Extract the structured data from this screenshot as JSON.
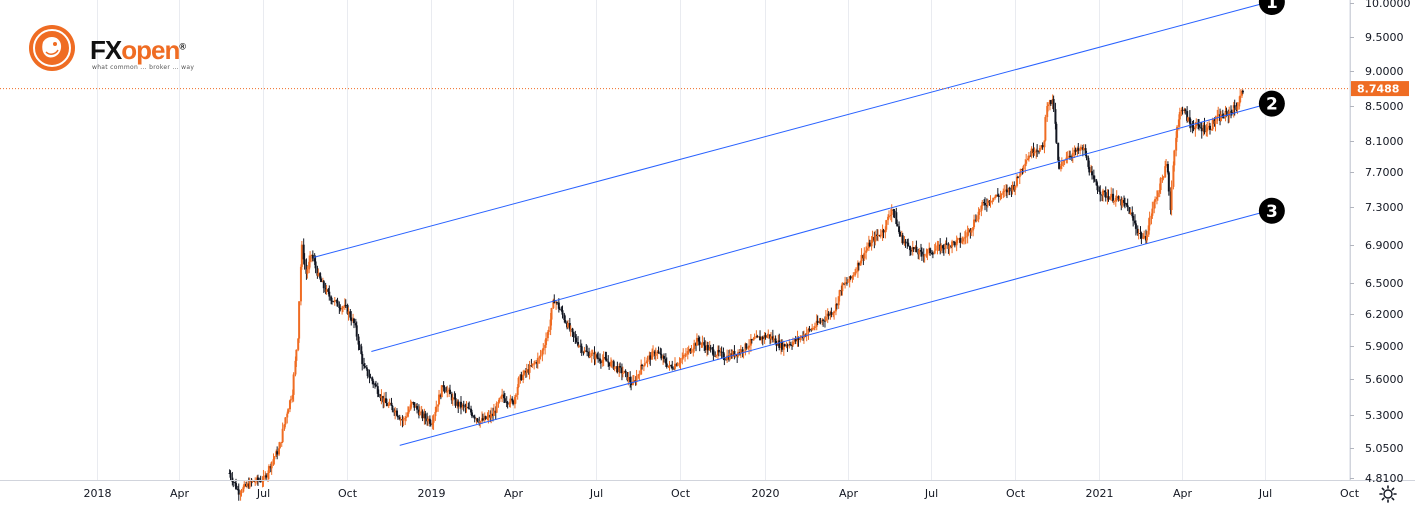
{
  "brand": {
    "name_fx": "FX",
    "name_open": "open",
    "registered": "®",
    "tagline": "what common ... broker ... way",
    "colors": {
      "orange": "#ef6c23",
      "dark": "#111111"
    }
  },
  "toolbar": {
    "settings_icon": "gear-icon"
  },
  "chart_data": {
    "type": "candlestick",
    "title": "",
    "xlabel": "",
    "ylabel": "",
    "ylim": [
      4.81,
      10.0
    ],
    "y_ticks": [
      "10.0000",
      "9.5000",
      "9.0000",
      "8.5000",
      "8.1000",
      "7.7000",
      "7.3000",
      "6.9000",
      "6.5000",
      "6.2000",
      "5.9000",
      "5.6000",
      "5.3000",
      "5.0500",
      "4.8100"
    ],
    "x_ticks": [
      {
        "label": "2018",
        "date": "2018-01-01"
      },
      {
        "label": "Apr",
        "date": "2018-04-01"
      },
      {
        "label": "Jul",
        "date": "2018-07-01"
      },
      {
        "label": "Oct",
        "date": "2018-10-01"
      },
      {
        "label": "2019",
        "date": "2019-01-01"
      },
      {
        "label": "Apr",
        "date": "2019-04-01"
      },
      {
        "label": "Jul",
        "date": "2019-07-01"
      },
      {
        "label": "Oct",
        "date": "2019-10-01"
      },
      {
        "label": "2020",
        "date": "2020-01-01"
      },
      {
        "label": "Apr",
        "date": "2020-04-01"
      },
      {
        "label": "Jul",
        "date": "2020-07-01"
      },
      {
        "label": "Oct",
        "date": "2020-10-01"
      },
      {
        "label": "2021",
        "date": "2021-01-01"
      },
      {
        "label": "Apr",
        "date": "2021-04-01"
      },
      {
        "label": "Jul",
        "date": "2021-07-01"
      },
      {
        "label": "Oct",
        "date": "2021-10-01"
      }
    ],
    "last_price": "8.7488",
    "last_price_color": "#ef6c23",
    "grid": true,
    "price_path": [
      [
        "2018-05-26",
        4.85
      ],
      [
        "2018-06-05",
        4.7
      ],
      [
        "2018-06-20",
        4.78
      ],
      [
        "2018-07-03",
        4.8
      ],
      [
        "2018-07-12",
        4.95
      ],
      [
        "2018-07-20",
        5.05
      ],
      [
        "2018-07-27",
        5.3
      ],
      [
        "2018-08-03",
        5.5
      ],
      [
        "2018-08-09",
        6.0
      ],
      [
        "2018-08-13",
        6.9
      ],
      [
        "2018-08-18",
        6.6
      ],
      [
        "2018-08-24",
        6.8
      ],
      [
        "2018-09-01",
        6.55
      ],
      [
        "2018-09-10",
        6.4
      ],
      [
        "2018-09-20",
        6.3
      ],
      [
        "2018-10-01",
        6.25
      ],
      [
        "2018-10-10",
        6.1
      ],
      [
        "2018-10-20",
        5.7
      ],
      [
        "2018-11-01",
        5.55
      ],
      [
        "2018-11-12",
        5.4
      ],
      [
        "2018-11-22",
        5.35
      ],
      [
        "2018-12-02",
        5.25
      ],
      [
        "2018-12-12",
        5.4
      ],
      [
        "2018-12-22",
        5.3
      ],
      [
        "2019-01-02",
        5.25
      ],
      [
        "2019-01-15",
        5.55
      ],
      [
        "2019-01-28",
        5.4
      ],
      [
        "2019-02-10",
        5.35
      ],
      [
        "2019-02-25",
        5.25
      ],
      [
        "2019-03-10",
        5.3
      ],
      [
        "2019-03-20",
        5.45
      ],
      [
        "2019-04-01",
        5.4
      ],
      [
        "2019-04-08",
        5.6
      ],
      [
        "2019-04-20",
        5.7
      ],
      [
        "2019-05-01",
        5.8
      ],
      [
        "2019-05-10",
        6.05
      ],
      [
        "2019-05-16",
        6.35
      ],
      [
        "2019-05-25",
        6.2
      ],
      [
        "2019-06-05",
        6.0
      ],
      [
        "2019-06-18",
        5.85
      ],
      [
        "2019-07-01",
        5.8
      ],
      [
        "2019-07-15",
        5.75
      ],
      [
        "2019-08-01",
        5.65
      ],
      [
        "2019-08-10",
        5.55
      ],
      [
        "2019-08-22",
        5.75
      ],
      [
        "2019-09-05",
        5.85
      ],
      [
        "2019-09-20",
        5.7
      ],
      [
        "2019-10-05",
        5.8
      ],
      [
        "2019-10-20",
        5.95
      ],
      [
        "2019-11-05",
        5.85
      ],
      [
        "2019-11-20",
        5.8
      ],
      [
        "2019-12-05",
        5.85
      ],
      [
        "2019-12-20",
        5.95
      ],
      [
        "2020-01-05",
        6.0
      ],
      [
        "2020-01-20",
        5.9
      ],
      [
        "2020-02-05",
        5.95
      ],
      [
        "2020-02-20",
        6.05
      ],
      [
        "2020-03-05",
        6.15
      ],
      [
        "2020-03-18",
        6.25
      ],
      [
        "2020-03-25",
        6.45
      ],
      [
        "2020-04-05",
        6.55
      ],
      [
        "2020-04-15",
        6.75
      ],
      [
        "2020-04-28",
        6.95
      ],
      [
        "2020-05-10",
        7.05
      ],
      [
        "2020-05-20",
        7.3
      ],
      [
        "2020-05-28",
        7.0
      ],
      [
        "2020-06-05",
        6.9
      ],
      [
        "2020-06-20",
        6.8
      ],
      [
        "2020-07-05",
        6.85
      ],
      [
        "2020-07-20",
        6.9
      ],
      [
        "2020-08-05",
        6.95
      ],
      [
        "2020-08-15",
        7.1
      ],
      [
        "2020-08-25",
        7.3
      ],
      [
        "2020-09-05",
        7.4
      ],
      [
        "2020-09-18",
        7.45
      ],
      [
        "2020-10-01",
        7.55
      ],
      [
        "2020-10-12",
        7.85
      ],
      [
        "2020-10-22",
        8.0
      ],
      [
        "2020-11-01",
        8.0
      ],
      [
        "2020-11-05",
        8.55
      ],
      [
        "2020-11-12",
        8.55
      ],
      [
        "2020-11-18",
        7.7
      ],
      [
        "2020-11-25",
        7.9
      ],
      [
        "2020-12-05",
        7.95
      ],
      [
        "2020-12-15",
        8.0
      ],
      [
        "2020-12-25",
        7.6
      ],
      [
        "2021-01-05",
        7.45
      ],
      [
        "2021-01-18",
        7.4
      ],
      [
        "2021-02-01",
        7.3
      ],
      [
        "2021-02-12",
        7.05
      ],
      [
        "2021-02-20",
        6.95
      ],
      [
        "2021-03-01",
        7.3
      ],
      [
        "2021-03-10",
        7.6
      ],
      [
        "2021-03-16",
        7.8
      ],
      [
        "2021-03-20",
        7.3
      ],
      [
        "2021-03-25",
        8.1
      ],
      [
        "2021-04-01",
        8.5
      ],
      [
        "2021-04-10",
        8.3
      ],
      [
        "2021-04-20",
        8.25
      ],
      [
        "2021-05-01",
        8.25
      ],
      [
        "2021-05-10",
        8.35
      ],
      [
        "2021-05-20",
        8.4
      ],
      [
        "2021-06-01",
        8.5
      ],
      [
        "2021-06-08",
        8.75
      ]
    ],
    "trend_lines": [
      {
        "label": "1",
        "start": [
          "2018-08-26",
          6.77
        ],
        "end": [
          "2021-07-01",
          10.0
        ]
      },
      {
        "label": "2",
        "start": [
          "2018-10-28",
          5.85
        ],
        "end": [
          "2021-07-01",
          8.52
        ]
      },
      {
        "label": "3",
        "start": [
          "2018-11-28",
          5.07
        ],
        "end": [
          "2021-07-01",
          7.25
        ]
      }
    ],
    "line_color": "#2962ff",
    "up_color": "#ef6c23",
    "down_color": "#131722"
  }
}
